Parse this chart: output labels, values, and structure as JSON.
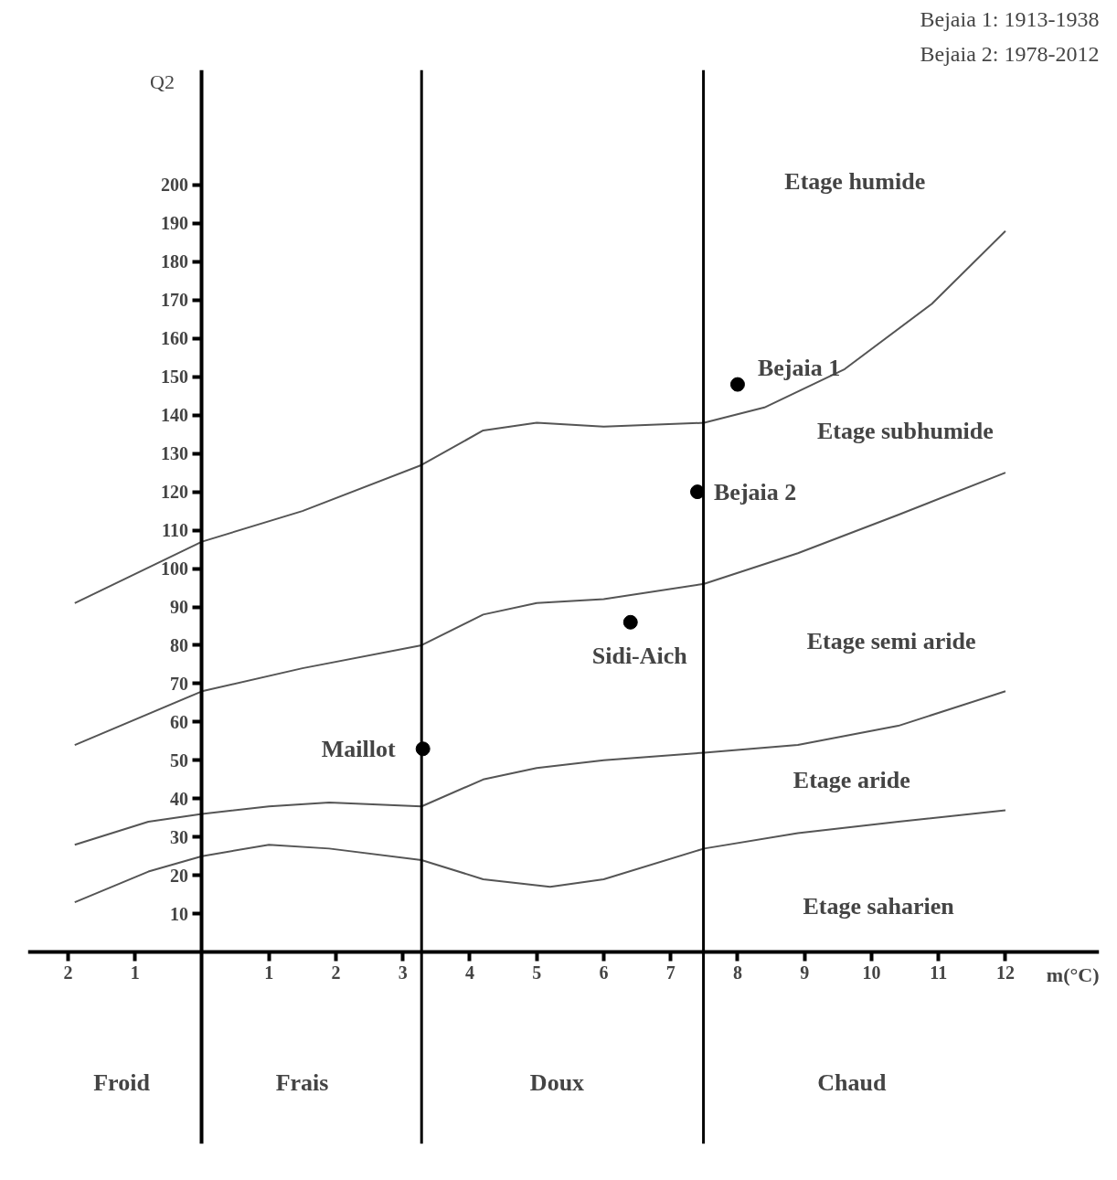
{
  "chart_data": {
    "type": "line",
    "xlabel": "m(°C)",
    "ylabel": "Q2",
    "xlim": [
      -2.6,
      13.4
    ],
    "ylim": [
      -50,
      230
    ],
    "xticks": [
      {
        "value": -2,
        "label": "2"
      },
      {
        "value": -1,
        "label": "1"
      },
      1,
      2,
      3,
      4,
      5,
      6,
      7,
      8,
      9,
      10,
      11,
      12
    ],
    "yticks": [
      10,
      20,
      30,
      40,
      50,
      60,
      70,
      80,
      90,
      100,
      110,
      120,
      130,
      140,
      150,
      160,
      170,
      180,
      190,
      200
    ],
    "grid": false,
    "marker": "none",
    "line_style": "solid",
    "series": [
      {
        "color": "#555555",
        "x": [
          -1.9,
          0,
          1.5,
          3.28,
          4.2,
          5,
          6,
          7.5,
          8.4,
          9.6,
          10.9,
          12
        ],
        "values": [
          91,
          107,
          115,
          127,
          136,
          138,
          137,
          138,
          142,
          152,
          169,
          188
        ]
      },
      {
        "color": "#555555",
        "x": [
          -1.9,
          0,
          1.5,
          3.28,
          4.2,
          5,
          6,
          7.5,
          8.9,
          10.4,
          12
        ],
        "values": [
          54,
          68,
          74,
          80,
          88,
          91,
          92,
          96,
          104,
          114,
          125
        ]
      },
      {
        "color": "#555555",
        "x": [
          -1.9,
          -0.8,
          0,
          1,
          1.9,
          3.28,
          4.2,
          5,
          6,
          7.5,
          8.9,
          10.4,
          12
        ],
        "values": [
          28,
          34,
          36,
          38,
          39,
          38,
          45,
          48,
          50,
          52,
          54,
          59,
          68
        ]
      },
      {
        "color": "#555555",
        "x": [
          -1.9,
          -0.8,
          0,
          1,
          1.9,
          3.28,
          4.2,
          5.2,
          6,
          7.5,
          8.9,
          10.4,
          12
        ],
        "values": [
          13,
          21,
          25,
          28,
          27,
          24,
          19,
          17,
          19,
          27,
          31,
          34,
          37
        ]
      },
      {
        "type": "scatter",
        "marker": "circle",
        "color": "#000000",
        "x": [
          8,
          7.4,
          6.4,
          3.3
        ],
        "values": [
          148,
          120,
          86,
          53
        ]
      }
    ],
    "ref_lines": [
      {
        "axis": "x",
        "value": 3.28,
        "color": "#000000"
      },
      {
        "axis": "x",
        "value": 7.49,
        "color": "#000000"
      }
    ],
    "annotations": [
      "Bejaia 1: 1913-1938",
      "Bejaia 2: 1978-2012",
      "Etage humide",
      "Etage subhumide",
      "Etage semi aride",
      "Etage aride",
      "Etage saharien",
      "Froid",
      "Frais",
      "Doux",
      "Chaud",
      {
        "text": "Bejaia 1",
        "x": 8,
        "y": 148
      },
      {
        "text": "Bejaia 2",
        "x": 7.4,
        "y": 120
      },
      {
        "text": "Sidi-Aich",
        "x": 6.4,
        "y": 86
      },
      {
        "text": "Maillot",
        "x": 3.3,
        "y": 53
      }
    ]
  }
}
